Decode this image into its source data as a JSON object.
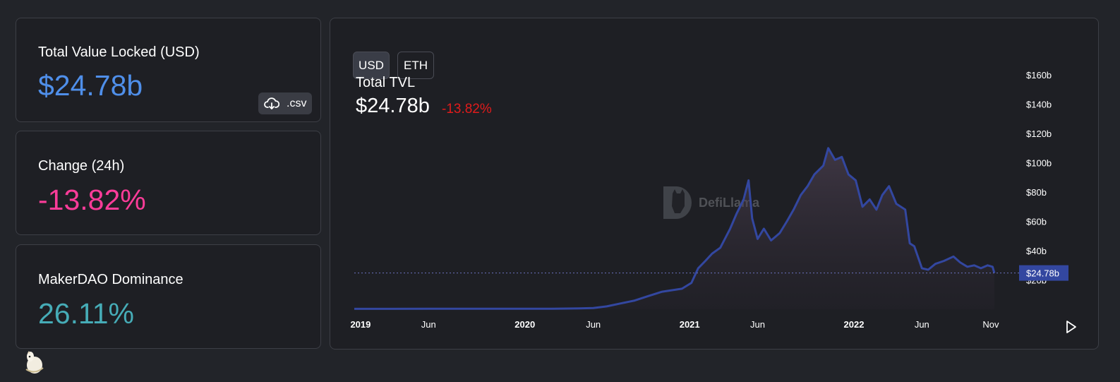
{
  "stats": {
    "tvl": {
      "label": "Total Value Locked (USD)",
      "value": "$24.78b",
      "color": "#4f8fea"
    },
    "change": {
      "label": "Change (24h)",
      "value": "-13.82%",
      "color": "#fd3c99"
    },
    "dominance": {
      "label": "MakerDAO Dominance",
      "value": "26.11%",
      "color": "#46acb7"
    },
    "csv_label": ".csv"
  },
  "toolbar": {
    "usd_label": "USD",
    "eth_label": "ETH",
    "active": "USD"
  },
  "chart_header": {
    "title": "Total TVL",
    "total": "$24.78b",
    "change": "-13.82%"
  },
  "watermark": {
    "text": "DefiLlama"
  },
  "colors": {
    "line": "#3347a0",
    "active_toggle_bg": "#3a3d47",
    "negative": "#e11b1b"
  },
  "chart_data": {
    "type": "area",
    "title": "Total TVL",
    "x": [
      "2018-12-18",
      "2019-03",
      "2019-06",
      "2019-09",
      "2019-12",
      "2020-03",
      "2020-05",
      "2020-06",
      "2020-07",
      "2020-08",
      "2020-09",
      "2020-10",
      "2020-11",
      "2020-12-15",
      "2021-01-05",
      "2021-01-20",
      "2021-02-05",
      "2021-02-20",
      "2021-03-10",
      "2021-04-01",
      "2021-04-15",
      "2021-05-01",
      "2021-05-12",
      "2021-05-20",
      "2021-06-01",
      "2021-06-15",
      "2021-07-01",
      "2021-07-20",
      "2021-08-05",
      "2021-08-20",
      "2021-09-05",
      "2021-09-20",
      "2021-10-05",
      "2021-10-25",
      "2021-11-05",
      "2021-11-20",
      "2021-12-05",
      "2021-12-20",
      "2022-01-05",
      "2022-01-20",
      "2022-02-05",
      "2022-02-20",
      "2022-03-05",
      "2022-03-20",
      "2022-04-05",
      "2022-04-25",
      "2022-05-05",
      "2022-05-15",
      "2022-06-01",
      "2022-06-15",
      "2022-07-01",
      "2022-07-20",
      "2022-08-10",
      "2022-08-25",
      "2022-09-10",
      "2022-09-25",
      "2022-10-10",
      "2022-10-25",
      "2022-11-05",
      "2022-11-09"
    ],
    "series": [
      {
        "values": [
          0.3,
          0.3,
          0.4,
          0.4,
          0.4,
          0.4,
          0.6,
          0.8,
          2,
          4,
          6,
          9,
          12,
          14,
          18,
          28,
          33,
          38,
          42,
          55,
          65,
          75,
          88,
          62,
          48,
          55,
          47,
          52,
          60,
          68,
          78,
          84,
          92,
          98,
          110,
          102,
          104,
          92,
          88,
          70,
          75,
          68,
          78,
          84,
          72,
          68,
          45,
          43,
          28,
          27,
          31,
          33,
          36,
          32,
          29,
          30,
          28,
          30,
          29,
          24.78
        ]
      }
    ],
    "ylim": [
      0,
      160
    ],
    "y_ticks": [
      "$20b",
      "$40b",
      "$60b",
      "$80b",
      "$100b",
      "$120b",
      "$140b",
      "$160b"
    ],
    "x_ticks": [
      "2019",
      "Jun",
      "2020",
      "Jun",
      "2021",
      "Jun",
      "2022",
      "Jun",
      "Nov"
    ],
    "last_value_label": "$24.78b",
    "grid": false,
    "legend": "none"
  }
}
